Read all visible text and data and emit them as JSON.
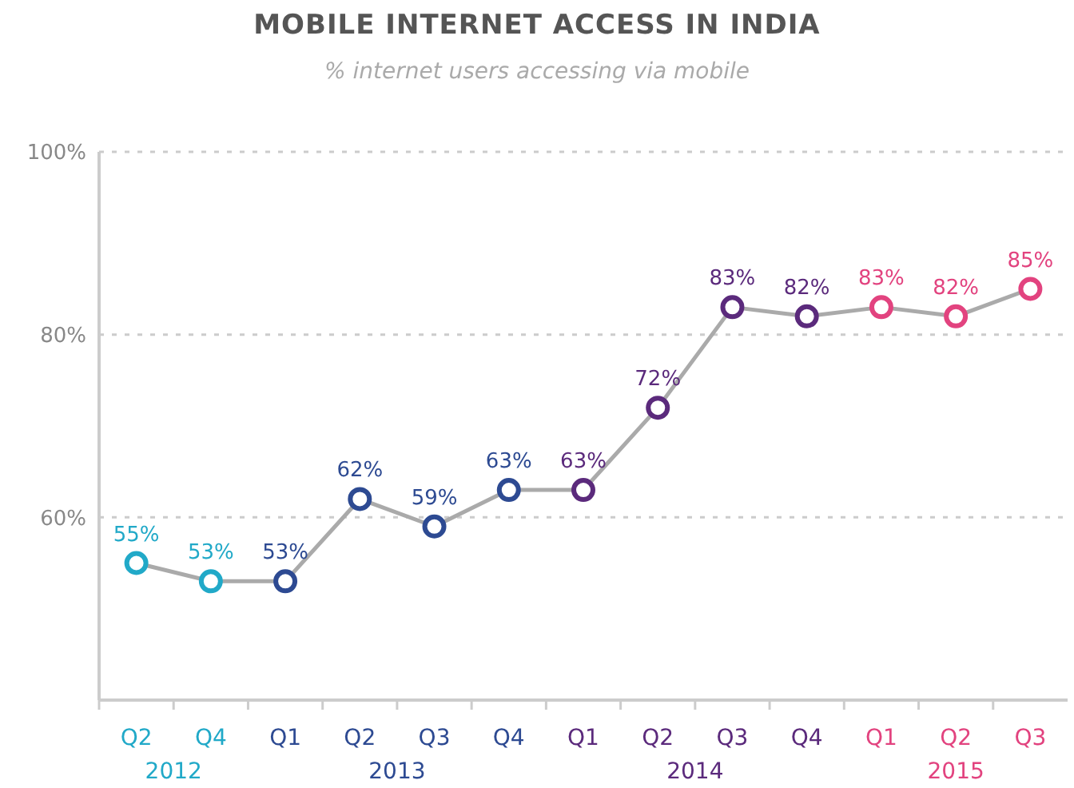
{
  "chart_data": {
    "type": "line",
    "title": "MOBILE INTERNET ACCESS IN INDIA",
    "subtitle": "% internet users accessing via mobile",
    "categories": [
      "Q2",
      "Q4",
      "Q1",
      "Q2",
      "Q3",
      "Q4",
      "Q1",
      "Q2",
      "Q3",
      "Q4",
      "Q1",
      "Q2",
      "Q3"
    ],
    "series": [
      {
        "color": "#aaaaaa",
        "colors": [
          "#21a9c8",
          "#21a9c8",
          "#2d4a92",
          "#2d4a92",
          "#2d4a92",
          "#2d4a92",
          "#5b2a7c",
          "#5b2a7c",
          "#5b2a7c",
          "#5b2a7c",
          "#e2437f",
          "#e2437f",
          "#e2437f"
        ],
        "values": [
          55,
          53,
          53,
          62,
          59,
          63,
          63,
          72,
          83,
          82,
          83,
          82,
          85
        ],
        "value_labels": [
          "55%",
          "53%",
          "53%",
          "62%",
          "59%",
          "63%",
          "63%",
          "72%",
          "83%",
          "82%",
          "83%",
          "82%",
          "85%"
        ]
      }
    ],
    "ylim": [
      40,
      100
    ],
    "yticks": [
      {
        "value": 60,
        "label": "60%"
      },
      {
        "value": 80,
        "label": "80%"
      },
      {
        "value": 100,
        "label": "100%"
      }
    ],
    "grid": "y",
    "marker": "circle",
    "line_style": "solid",
    "annotations": [
      "2012",
      "2013",
      "2014",
      "2015"
    ]
  }
}
